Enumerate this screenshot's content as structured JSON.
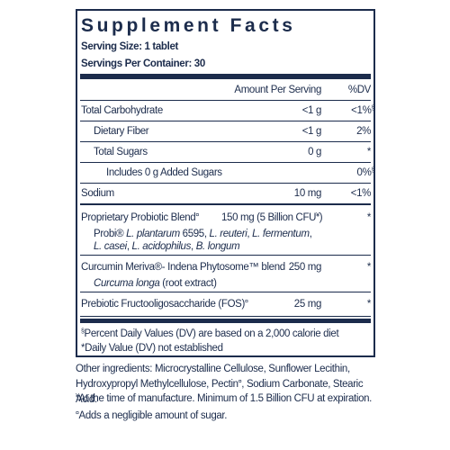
{
  "label": {
    "title": "Supplement Facts",
    "serving_size": "Serving Size: 1 tablet",
    "servings_per_container": "Servings Per Container: 30",
    "header": {
      "amount": "Amount Per Serving",
      "dv": "%DV"
    },
    "rows": [
      {
        "name": "Total Carbohydrate",
        "amount": "<1 g",
        "dv": "<1%",
        "dv_sup": "§"
      },
      {
        "name": "Dietary Fiber",
        "amount": "<1 g",
        "dv": "2%"
      },
      {
        "name": "Total Sugars",
        "amount": "0 g",
        "dv": "*"
      },
      {
        "name": "Includes 0 g Added Sugars",
        "dv": "0%",
        "dv_sup": "§"
      },
      {
        "name": "Sodium",
        "amount": "10 mg",
        "dv": "<1%"
      }
    ],
    "blends": [
      {
        "name": "Proprietary Probiotic Blend",
        "name_sup": "¤",
        "amount": "150 mg (5 Billion CFU",
        "amount_sup": "¥",
        "amount_end": ")",
        "dv": "*",
        "description": [
          [
            {
              "text": "Probi® "
            },
            {
              "text": "L. plantarum",
              "italic": true
            },
            {
              "text": " 6595, "
            },
            {
              "text": "L. reuteri",
              "italic": true
            },
            {
              "text": ", "
            },
            {
              "text": "L. fermentum",
              "italic": true
            },
            {
              "text": ","
            }
          ],
          [
            {
              "text": "L. casei",
              "italic": true
            },
            {
              "text": ", "
            },
            {
              "text": "L. acidophilus",
              "italic": true
            },
            {
              "text": ", "
            },
            {
              "text": "B. longum",
              "italic": true
            }
          ]
        ]
      },
      {
        "name": "Curcumin Meriva®- Indena Phytosome™ blend",
        "amount": "250 mg",
        "dv": "*",
        "description": [
          [
            {
              "text": "Curcuma longa",
              "italic": true
            },
            {
              "text": " (root extract)"
            }
          ]
        ]
      },
      {
        "name": "Prebiotic Fructooligosaccharide (FOS)",
        "name_sup": "¤",
        "amount": "25 mg",
        "dv": "*"
      }
    ],
    "footnotes": [
      {
        "sup": "§",
        "text": "Percent Daily Values (DV) are based on a 2,000 calorie diet"
      },
      {
        "text": "*Daily Value (DV) not established"
      }
    ]
  },
  "other_ingredients": {
    "text": "Other ingredients: Microcrystalline Cellulose, Sunflower Lecithin, Hydroxypropyl Methylcellulose, Pectin",
    "sup": "¤",
    "text_end": ", Sodium Carbonate, Stearic Acid."
  },
  "notes": [
    {
      "sup": "¥",
      "text": "At the time of manufacture. Minimum of 1.5 Billion CFU at expiration."
    },
    {
      "sup": "¤",
      "text": "Adds a negligible amount of sugar."
    }
  ]
}
